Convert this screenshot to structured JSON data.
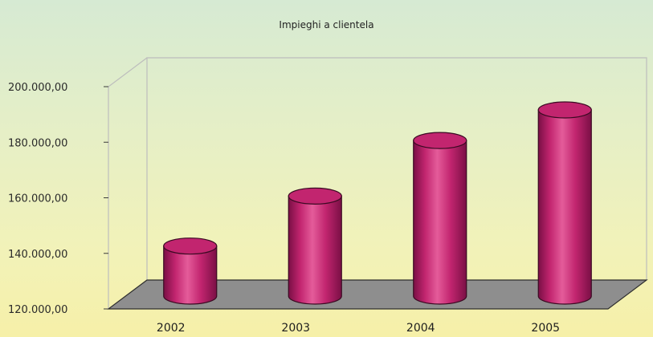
{
  "chart_data": {
    "type": "bar",
    "title": "Impieghi a clientela",
    "categories": [
      "2002",
      "2003",
      "2004",
      "2005"
    ],
    "values": [
      138000,
      156000,
      176000,
      187000
    ],
    "ylim": [
      120000,
      200000
    ],
    "yticks": [
      120000,
      140000,
      160000,
      180000,
      200000
    ],
    "ytick_labels": [
      "120.000,00",
      "140.000,00",
      "160.000,00",
      "180.000,00",
      "200.000,00"
    ],
    "xlabel": "",
    "ylabel": "",
    "grid": false,
    "legend": "none",
    "bar_style": "3d-cylinder",
    "colors": {
      "bar": "#c2256f",
      "bar_dark": "#7a0f45",
      "bar_light": "#e45c9a",
      "floor": "#8e8e8e",
      "axis": "#3a3a3a"
    }
  }
}
